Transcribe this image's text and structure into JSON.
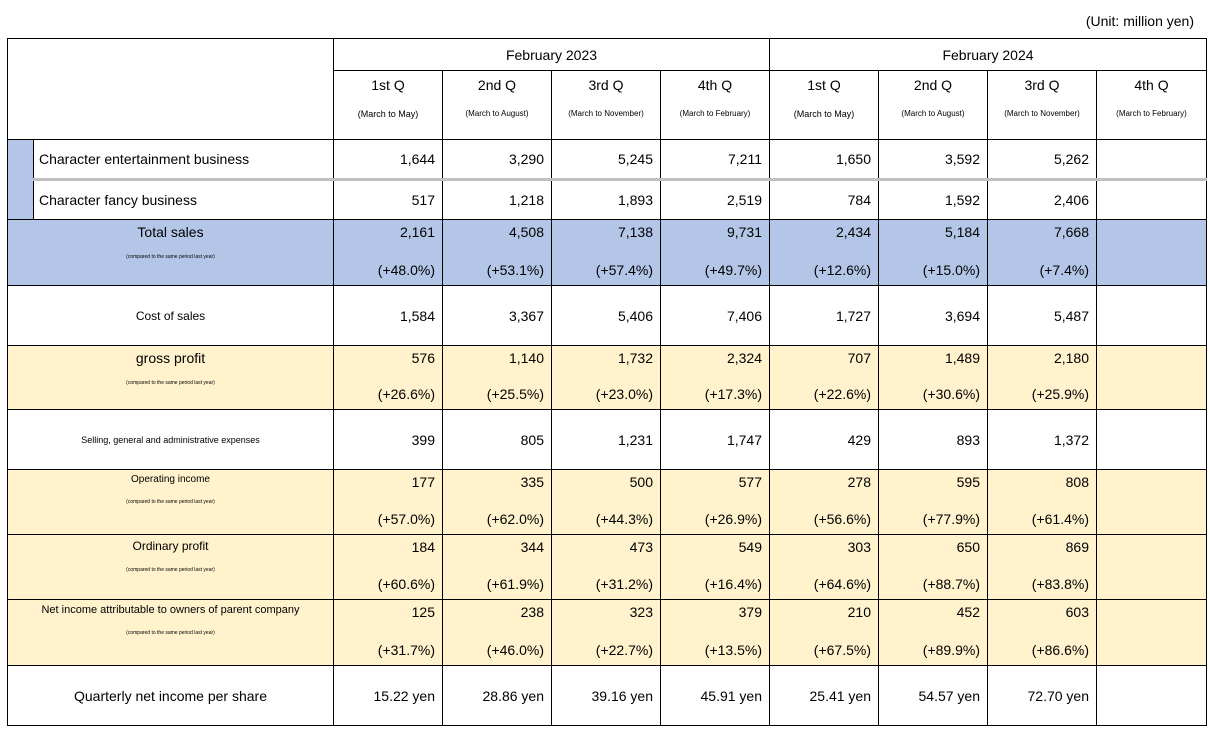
{
  "unit": "(Unit: million yen)",
  "years": [
    "February 2023",
    "February 2024"
  ],
  "quarters": [
    {
      "q": "1st Q",
      "range": "(March to May)"
    },
    {
      "q": "2nd Q",
      "range": "(March to August)"
    },
    {
      "q": "3rd Q",
      "range": "(March to November)"
    },
    {
      "q": "4th Q",
      "range": "(March to February)"
    },
    {
      "q": "1st Q",
      "range": "(March to May)"
    },
    {
      "q": "2nd Q",
      "range": "(March to August)"
    },
    {
      "q": "3rd Q",
      "range": "(March to November)"
    },
    {
      "q": "4th Q",
      "range": "(March to February)"
    }
  ],
  "compare_note": "(compared to the same period last year)",
  "rows": {
    "char_ent": {
      "label": "Character entertainment business",
      "values": [
        "1,644",
        "3,290",
        "5,245",
        "7,211",
        "1,650",
        "3,592",
        "5,262",
        ""
      ]
    },
    "char_fancy": {
      "label": "Character fancy business",
      "values": [
        "517",
        "1,218",
        "1,893",
        "2,519",
        "784",
        "1,592",
        "2,406",
        ""
      ]
    },
    "total_sales": {
      "label": "Total sales",
      "values": [
        "2,161",
        "4,508",
        "7,138",
        "9,731",
        "2,434",
        "5,184",
        "7,668",
        ""
      ],
      "pct": [
        "(+48.0%)",
        "(+53.1%)",
        "(+57.4%)",
        "(+49.7%)",
        "(+12.6%)",
        "(+15.0%)",
        "(+7.4%)",
        ""
      ]
    },
    "cost_sales": {
      "label": "Cost of sales",
      "values": [
        "1,584",
        "3,367",
        "5,406",
        "7,406",
        "1,727",
        "3,694",
        "5,487",
        ""
      ]
    },
    "gross_profit": {
      "label": "gross profit",
      "values": [
        "576",
        "1,140",
        "1,732",
        "2,324",
        "707",
        "1,489",
        "2,180",
        ""
      ],
      "pct": [
        "(+26.6%)",
        "(+25.5%)",
        "(+23.0%)",
        "(+17.3%)",
        "(+22.6%)",
        "(+30.6%)",
        "(+25.9%)",
        ""
      ]
    },
    "sga": {
      "label": "Selling, general and administrative expenses",
      "values": [
        "399",
        "805",
        "1,231",
        "1,747",
        "429",
        "893",
        "1,372",
        ""
      ]
    },
    "op_income": {
      "label": "Operating income",
      "values": [
        "177",
        "335",
        "500",
        "577",
        "278",
        "595",
        "808",
        ""
      ],
      "pct": [
        "(+57.0%)",
        "(+62.0%)",
        "(+44.3%)",
        "(+26.9%)",
        "(+56.6%)",
        "(+77.9%)",
        "(+61.4%)",
        ""
      ]
    },
    "ord_profit": {
      "label": "Ordinary profit",
      "values": [
        "184",
        "344",
        "473",
        "549",
        "303",
        "650",
        "869",
        ""
      ],
      "pct": [
        "(+60.6%)",
        "(+61.9%)",
        "(+31.2%)",
        "(+16.4%)",
        "(+64.6%)",
        "(+88.7%)",
        "(+83.8%)",
        ""
      ]
    },
    "net_income": {
      "label": "Net income attributable to owners of parent company",
      "values": [
        "125",
        "238",
        "323",
        "379",
        "210",
        "452",
        "603",
        ""
      ],
      "pct": [
        "(+31.7%)",
        "(+46.0%)",
        "(+22.7%)",
        "(+13.5%)",
        "(+67.5%)",
        "(+89.9%)",
        "(+86.6%)",
        ""
      ]
    },
    "eps": {
      "label": "Quarterly net income per share",
      "values": [
        "15.22 yen",
        "28.86 yen",
        "39.16 yen",
        "45.91 yen",
        "25.41 yen",
        "54.57 yen",
        "72.70 yen",
        ""
      ]
    }
  }
}
